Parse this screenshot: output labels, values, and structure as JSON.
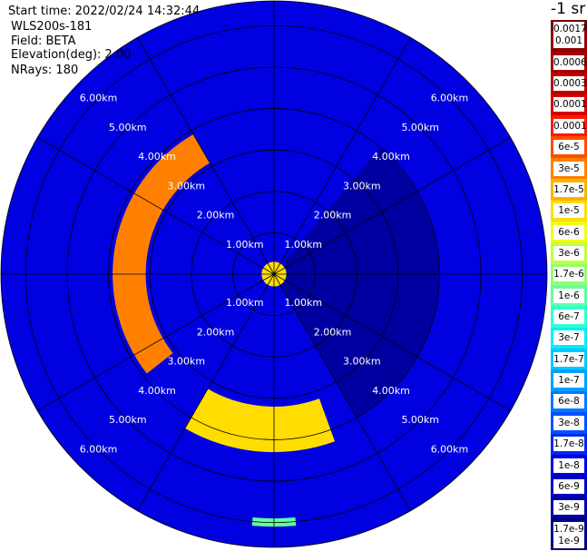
{
  "header": {
    "start_time": "Start time: 2022/02/24 14:32:44",
    "instrument": "WLS200s-181",
    "field": "Field: BETA",
    "elevation": "Elevation(deg): 2.00",
    "nrays": "NRays: 180"
  },
  "colorbar": {
    "units_label": "-1 sr",
    "tick_labels": [
      "0.0017",
      "0.001",
      "0.0006",
      "0.0003",
      "0.00017",
      "0.0001",
      "6e-5",
      "3e-5",
      "1.7e-5",
      "1e-5",
      "6e-6",
      "3e-6",
      "1.7e-6",
      "1e-6",
      "6e-7",
      "3e-7",
      "1.7e-7",
      "1e-7",
      "6e-8",
      "3e-8",
      "1.7e-8",
      "1e-8",
      "6e-9",
      "3e-9",
      "1.7e-9",
      "1e-9"
    ],
    "colors": [
      "#7a0000",
      "#8e0000",
      "#a50000",
      "#bd0000",
      "#d40000",
      "#ff1a00",
      "#ff4d00",
      "#ff8000",
      "#ffb000",
      "#ffdd00",
      "#f0ff10",
      "#c0ff40",
      "#90ff70",
      "#60ffa0",
      "#30ffd0",
      "#00eeff",
      "#00c8ff",
      "#00a0ff",
      "#0078ff",
      "#0050ff",
      "#0028f0",
      "#0000e0",
      "#0000c0",
      "#0000a0",
      "#000088",
      "#000070"
    ]
  },
  "chart_data": {
    "type": "heatmap",
    "projection": "polar-ppi",
    "title": "",
    "max_range_km": 6.6,
    "range_ring_labels": [
      "1.00km",
      "2.00km",
      "3.00km",
      "4.00km",
      "5.00km",
      "6.00km"
    ],
    "ray_count": 180,
    "background_level": "1e-8",
    "regions": [
      {
        "description": "high-backscatter arc (yellow/orange) west of radar",
        "azimuth_deg": [
          232,
          330
        ],
        "range_km": [
          3.1,
          3.9
        ],
        "level": "3e-5"
      },
      {
        "description": "high-backscatter arc south",
        "azimuth_deg": [
          160,
          210
        ],
        "range_km": [
          3.2,
          4.3
        ],
        "level": "1e-5"
      },
      {
        "description": "low-backscatter sector east",
        "azimuth_deg": [
          40,
          150
        ],
        "range_km": [
          0.2,
          4.0
        ],
        "level": "3e-9"
      },
      {
        "description": "near-field echoes",
        "azimuth_deg": [
          0,
          360
        ],
        "range_km": [
          0.0,
          0.3
        ],
        "level": "1e-5"
      },
      {
        "description": "far spot south",
        "azimuth_deg": [
          175,
          185
        ],
        "range_km": [
          5.9,
          6.1
        ],
        "level": "1e-6"
      }
    ]
  }
}
